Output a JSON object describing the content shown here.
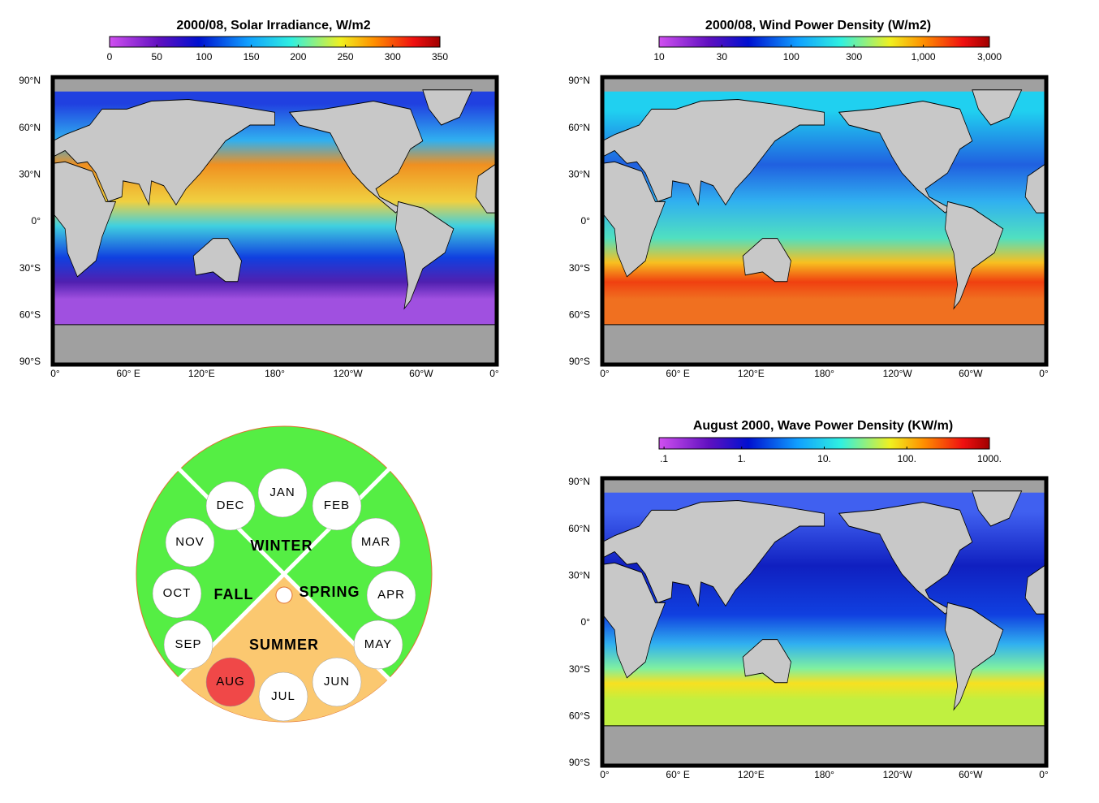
{
  "panels": [
    {
      "title": "2000/08, Solar Irradiance, W/m2",
      "colorbar_ticks": [
        "0",
        "50",
        "100",
        "150",
        "200",
        "250",
        "300",
        "350"
      ],
      "lat_labels": [
        "90°N",
        "60°N",
        "30°N",
        "0°",
        "30°S",
        "60°S",
        "90°S"
      ],
      "lon_labels": [
        "0°",
        "60° E",
        "120°E",
        "180°",
        "120°W",
        "60°W",
        "0°"
      ]
    },
    {
      "title": "2000/08, Wind Power Density (W/m2)",
      "colorbar_ticks": [
        "10",
        "30",
        "100",
        "300",
        "1,000",
        "3,000"
      ],
      "lat_labels": [
        "90°N",
        "60°N",
        "30°N",
        "0°",
        "30°S",
        "60°S",
        "90°S"
      ],
      "lon_labels": [
        "0°",
        "60° E",
        "120°E",
        "180°",
        "120°W",
        "60°W",
        "0°"
      ]
    },
    {
      "title": "August 2000, Wave Power Density (KW/m)",
      "colorbar_ticks": [
        ".1",
        "1.",
        "10.",
        "100.",
        "1000."
      ],
      "lat_labels": [
        "90°N",
        "60°N",
        "30°N",
        "0°",
        "30°S",
        "60°S",
        "90°S"
      ],
      "lon_labels": [
        "0°",
        "60° E",
        "120°E",
        "180°",
        "120°W",
        "60°W",
        "0°"
      ]
    }
  ],
  "season_wheel": {
    "seasons": [
      "WINTER",
      "SPRING",
      "SUMMER",
      "FALL"
    ],
    "months": [
      "JAN",
      "FEB",
      "MAR",
      "APR",
      "MAY",
      "JUN",
      "JUL",
      "AUG",
      "SEP",
      "OCT",
      "NOV",
      "DEC"
    ],
    "selected_month": 7
  }
}
